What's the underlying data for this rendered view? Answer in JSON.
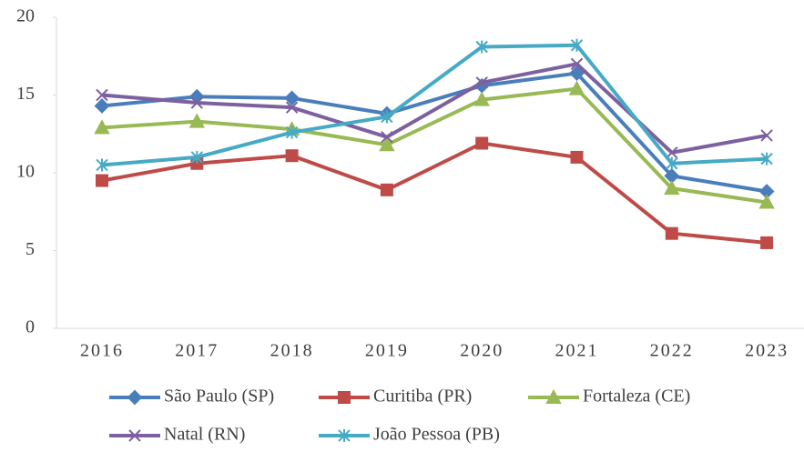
{
  "chart_data": {
    "type": "line",
    "categories": [
      "2016",
      "2017",
      "2018",
      "2019",
      "2020",
      "2021",
      "2022",
      "2023"
    ],
    "ylim": [
      0,
      20
    ],
    "yticks": [
      0,
      5,
      10,
      15,
      20
    ],
    "grid": false,
    "legend": "bottom",
    "series": [
      {
        "name": "São Paulo (SP)",
        "color": "#4a7ebb",
        "marker": "diamond",
        "values": [
          14.3,
          14.9,
          14.8,
          13.8,
          15.6,
          16.4,
          9.8,
          8.8
        ]
      },
      {
        "name": "Curitiba (PR)",
        "color": "#be4b48",
        "marker": "square",
        "values": [
          9.5,
          10.6,
          11.1,
          8.9,
          11.9,
          11.0,
          6.1,
          5.5
        ]
      },
      {
        "name": "Fortaleza (CE)",
        "color": "#98b954",
        "marker": "triangle",
        "values": [
          12.9,
          13.3,
          12.8,
          11.8,
          14.7,
          15.4,
          9.0,
          8.1
        ]
      },
      {
        "name": "Natal (RN)",
        "color": "#7d60a0",
        "marker": "x",
        "values": [
          15.0,
          14.5,
          14.2,
          12.3,
          15.8,
          17.0,
          11.3,
          12.4
        ]
      },
      {
        "name": "João Pessoa (PB)",
        "color": "#46aac5",
        "marker": "star",
        "values": [
          10.5,
          11.0,
          12.6,
          13.6,
          18.1,
          18.2,
          10.6,
          10.9
        ]
      }
    ]
  }
}
